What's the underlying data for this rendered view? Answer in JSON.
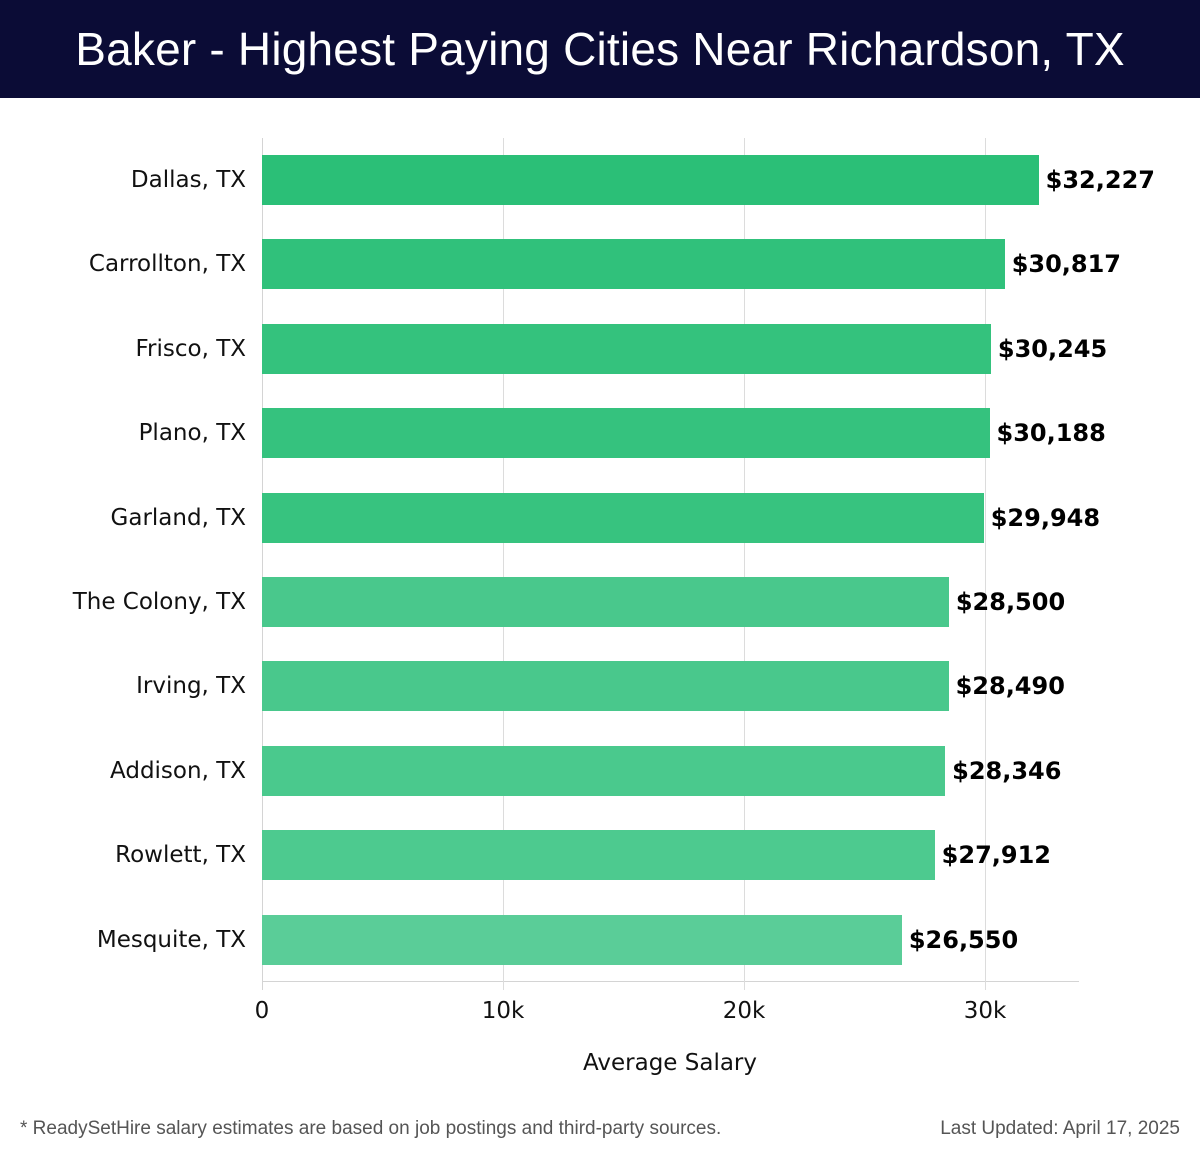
{
  "header": {
    "title": "Baker - Highest Paying Cities Near Richardson, TX"
  },
  "chart_data": {
    "type": "bar",
    "orientation": "horizontal",
    "title": "Baker - Highest Paying Cities Near Richardson, TX",
    "xlabel": "Average Salary",
    "ylabel": "",
    "xlim": [
      0,
      33800
    ],
    "x_ticks": [
      0,
      10000,
      20000,
      30000
    ],
    "x_tick_labels": [
      "0",
      "10k",
      "20k",
      "30k"
    ],
    "grid": true,
    "categories": [
      "Dallas, TX",
      "Carrollton, TX",
      "Frisco, TX",
      "Plano, TX",
      "Garland, TX",
      "The Colony, TX",
      "Irving, TX",
      "Addison, TX",
      "Rowlett, TX",
      "Mesquite, TX"
    ],
    "values": [
      32227,
      30817,
      30245,
      30188,
      29948,
      28500,
      28490,
      28346,
      27912,
      26550
    ],
    "value_labels": [
      "$32,227",
      "$30,817",
      "$30,245",
      "$30,188",
      "$29,948",
      "$28,500",
      "$28,490",
      "$28,346",
      "$27,912",
      "$26,550"
    ],
    "bar_colors": [
      "#2bbf77",
      "#30c17b",
      "#34c27d",
      "#35c27e",
      "#37c37f",
      "#49c88c",
      "#49c88c",
      "#4ac98d",
      "#4dca8f",
      "#5acd98"
    ]
  },
  "footer": {
    "note": "* ReadySetHire salary estimates are based on job postings and third-party sources.",
    "updated": "Last Updated: April 17, 2025"
  }
}
